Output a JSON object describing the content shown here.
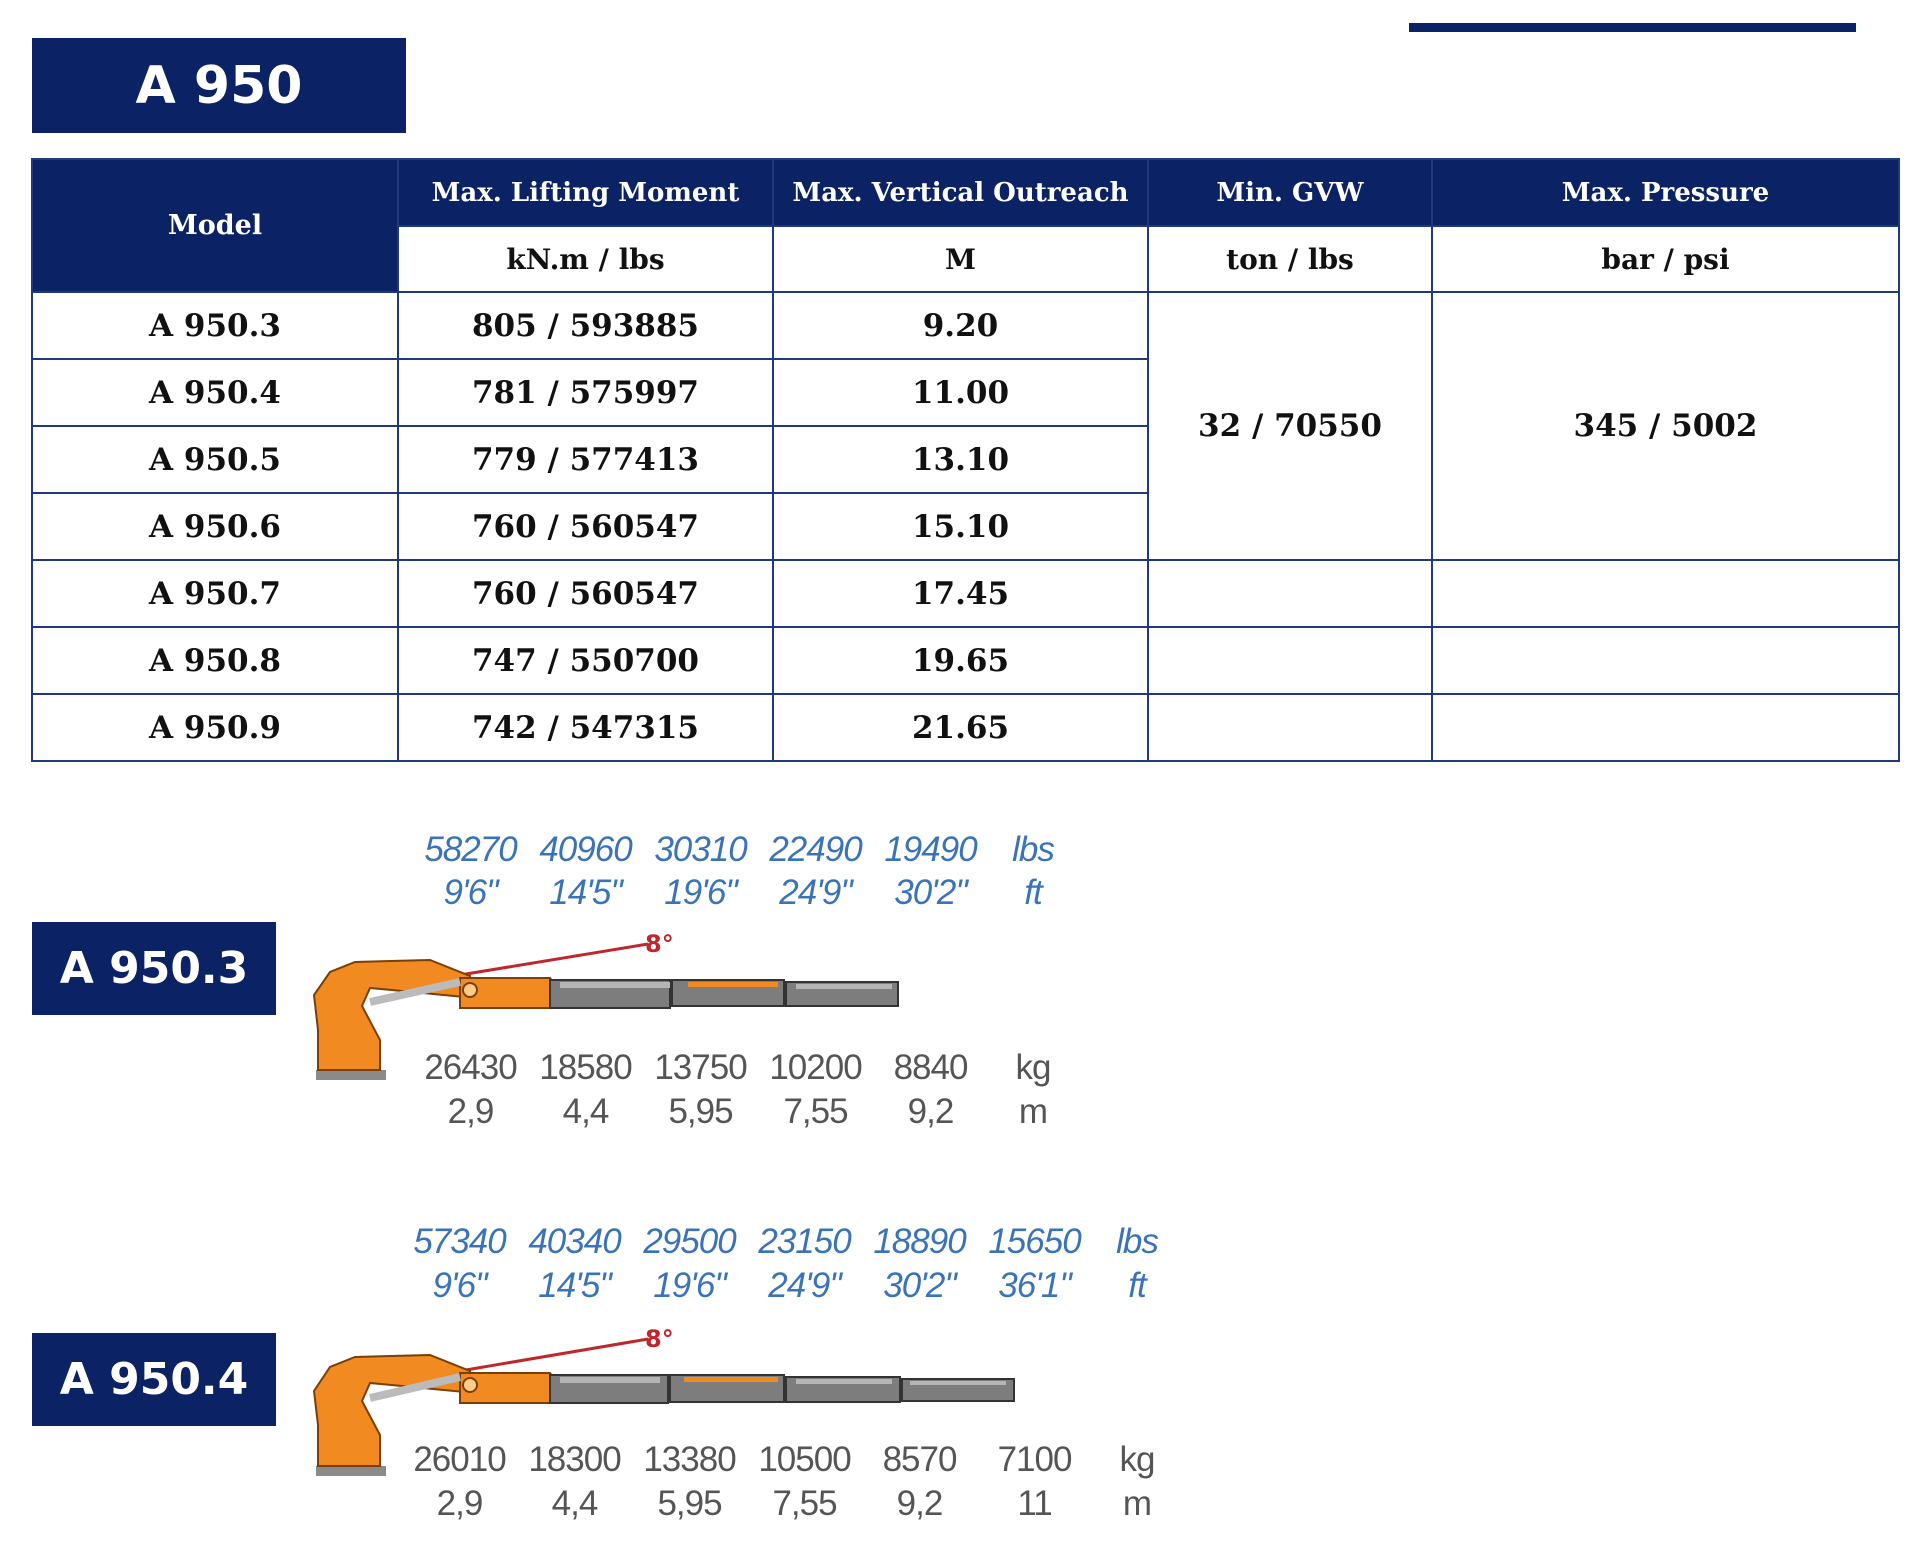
{
  "title": "A 950",
  "table": {
    "headers": [
      {
        "label": "Model"
      },
      {
        "label": "Max. Lifting Moment",
        "unit": "kN.m / lbs"
      },
      {
        "label": "Max. Vertical Outreach",
        "unit": "M"
      },
      {
        "label": "Min. GVW",
        "unit": "ton / lbs"
      },
      {
        "label": "Max. Pressure",
        "unit": "bar / psi"
      }
    ],
    "rows": [
      {
        "model": "A 950.3",
        "moment": "805 / 593885",
        "outreach": "9.20"
      },
      {
        "model": "A 950.4",
        "moment": "781 / 575997",
        "outreach": "11.00"
      },
      {
        "model": "A 950.5",
        "moment": "779 / 577413",
        "outreach": "13.10"
      },
      {
        "model": "A 950.6",
        "moment": "760 / 560547",
        "outreach": "15.10"
      },
      {
        "model": "A 950.7",
        "moment": "760 / 560547",
        "outreach": "17.45"
      },
      {
        "model": "A 950.8",
        "moment": "747 / 550700",
        "outreach": "19.65"
      },
      {
        "model": "A 950.9",
        "moment": "742 / 547315",
        "outreach": "21.65"
      }
    ],
    "gvw": "32 / 70550",
    "pressure": "345 / 5002"
  },
  "diagrams": [
    {
      "model": "A 950.3",
      "angle": "8°",
      "lbs": [
        "58270",
        "40960",
        "30310",
        "22490",
        "19490"
      ],
      "ft": [
        "9'6\"",
        "14'5\"",
        "19'6\"",
        "24'9\"",
        "30'2\""
      ],
      "kg": [
        "26430",
        "18580",
        "13750",
        "10200",
        "8840"
      ],
      "m": [
        "2,9",
        "4,4",
        "5,95",
        "7,55",
        "9,2"
      ],
      "units": {
        "lbs": "lbs",
        "ft": "ft",
        "kg": "kg",
        "m": "m"
      }
    },
    {
      "model": "A 950.4",
      "angle": "8°",
      "lbs": [
        "57340",
        "40340",
        "29500",
        "23150",
        "18890",
        "15650"
      ],
      "ft": [
        "9'6\"",
        "14'5\"",
        "19'6\"",
        "24'9\"",
        "30'2\"",
        "36'1\""
      ],
      "kg": [
        "26010",
        "18300",
        "13380",
        "10500",
        "8570",
        "7100"
      ],
      "m": [
        "2,9",
        "4,4",
        "5,95",
        "7,55",
        "9,2",
        "11"
      ],
      "units": {
        "lbs": "lbs",
        "ft": "ft",
        "kg": "kg",
        "m": "m"
      }
    }
  ],
  "colors": {
    "navy": "#0b2265",
    "orange": "#f28a22",
    "gray": "#7d7d7d",
    "angle": "#c0262c",
    "blue_text": "#3b73b9"
  }
}
